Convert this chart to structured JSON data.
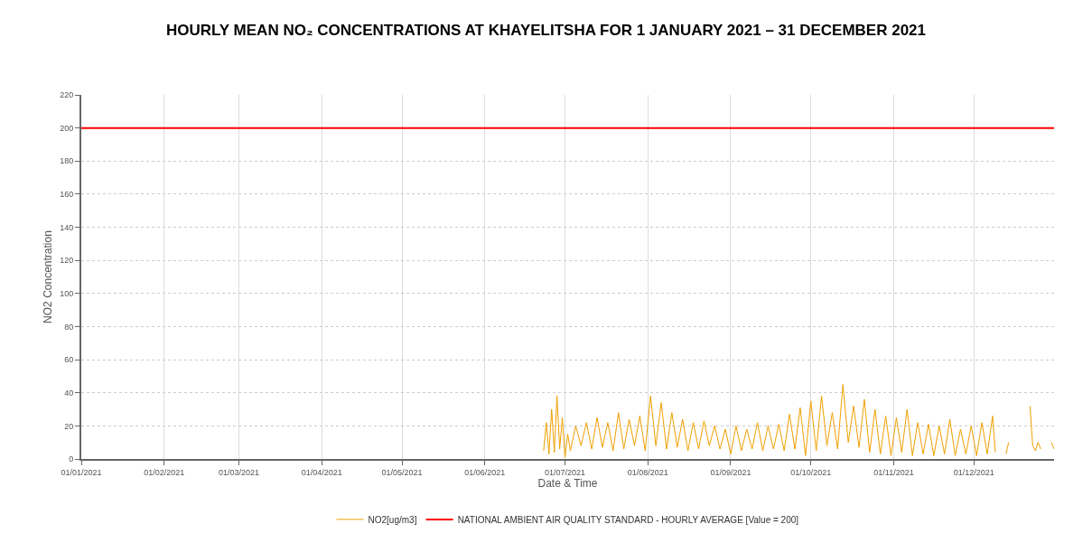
{
  "chart_data": {
    "type": "line",
    "title": "HOURLY MEAN NO₂ CONCENTRATIONS AT KHAYELITSHA FOR 1 JANUARY 2021 – 31 DECEMBER 2021",
    "xlabel": "Date & Time",
    "ylabel": "NO2 Concentration",
    "x": [
      "2021-06-23",
      "2021-06-24",
      "2021-06-25",
      "2021-06-26",
      "2021-06-27",
      "2021-06-28",
      "2021-06-29",
      "2021-06-30",
      "2021-07-01",
      "2021-07-02",
      "2021-07-03",
      "2021-07-05",
      "2021-07-07",
      "2021-07-09",
      "2021-07-11",
      "2021-07-13",
      "2021-07-15",
      "2021-07-17",
      "2021-07-19",
      "2021-07-21",
      "2021-07-23",
      "2021-07-25",
      "2021-07-27",
      "2021-07-29",
      "2021-07-31",
      "2021-08-02",
      "2021-08-04",
      "2021-08-06",
      "2021-08-08",
      "2021-08-10",
      "2021-08-12",
      "2021-08-14",
      "2021-08-16",
      "2021-08-18",
      "2021-08-20",
      "2021-08-22",
      "2021-08-24",
      "2021-08-26",
      "2021-08-28",
      "2021-08-30",
      "2021-09-01",
      "2021-09-03",
      "2021-09-05",
      "2021-09-07",
      "2021-09-09",
      "2021-09-11",
      "2021-09-13",
      "2021-09-15",
      "2021-09-17",
      "2021-09-19",
      "2021-09-21",
      "2021-09-23",
      "2021-09-25",
      "2021-09-27",
      "2021-09-29",
      "2021-10-01",
      "2021-10-03",
      "2021-10-05",
      "2021-10-07",
      "2021-10-09",
      "2021-10-11",
      "2021-10-13",
      "2021-10-15",
      "2021-10-17",
      "2021-10-19",
      "2021-10-21",
      "2021-10-23",
      "2021-10-25",
      "2021-10-27",
      "2021-10-29",
      "2021-10-31",
      "2021-11-02",
      "2021-11-04",
      "2021-11-06",
      "2021-11-08",
      "2021-11-10",
      "2021-11-12",
      "2021-11-14",
      "2021-11-16",
      "2021-11-18",
      "2021-11-20",
      "2021-11-22",
      "2021-11-24",
      "2021-11-26",
      "2021-11-28",
      "2021-11-30",
      "2021-12-02",
      "2021-12-04",
      "2021-12-06",
      "2021-12-08",
      "2021-12-09",
      "2021-12-10",
      "2021-12-13",
      "2021-12-14",
      "2021-12-15",
      "2021-12-22",
      "2021-12-23",
      "2021-12-24",
      "2021-12-25",
      "2021-12-26",
      "2021-12-27",
      "2021-12-30",
      "2021-12-31"
    ],
    "series": [
      {
        "name": "NO2[ug/m3]",
        "color": "#f0a000",
        "values": [
          5,
          22,
          3,
          30,
          4,
          38,
          6,
          25,
          1,
          15,
          5,
          20,
          8,
          22,
          6,
          25,
          7,
          22,
          5,
          28,
          6,
          24,
          8,
          26,
          5,
          38,
          8,
          34,
          6,
          28,
          7,
          24,
          5,
          22,
          6,
          23,
          8,
          20,
          6,
          18,
          3,
          20,
          5,
          18,
          6,
          22,
          5,
          20,
          6,
          21,
          5,
          27,
          6,
          31,
          2,
          35,
          5,
          38,
          8,
          28,
          6,
          45,
          10,
          32,
          7,
          36,
          4,
          30,
          3,
          26,
          2,
          25,
          4,
          30,
          2,
          22,
          3,
          21,
          2,
          20,
          3,
          24,
          2,
          18,
          3,
          20,
          2,
          22,
          3,
          26,
          4,
          null,
          3,
          10,
          null,
          32,
          8,
          5,
          10,
          6,
          null,
          10,
          6
        ]
      }
    ],
    "xlim": [
      "2021-01-01",
      "2021-12-31"
    ],
    "xticks": [
      {
        "value": "2021-01-01",
        "label": "01/01/2021"
      },
      {
        "value": "2021-02-01",
        "label": "01/02/2021"
      },
      {
        "value": "2021-03-01",
        "label": "01/03/2021"
      },
      {
        "value": "2021-04-01",
        "label": "01/04/2021"
      },
      {
        "value": "2021-05-01",
        "label": "01/05/2021"
      },
      {
        "value": "2021-06-01",
        "label": "01/06/2021"
      },
      {
        "value": "2021-07-01",
        "label": "01/07/2021"
      },
      {
        "value": "2021-08-01",
        "label": "01/08/2021"
      },
      {
        "value": "2021-09-01",
        "label": "01/09/2021"
      },
      {
        "value": "2021-10-01",
        "label": "01/10/2021"
      },
      {
        "value": "2021-11-01",
        "label": "01/11/2021"
      },
      {
        "value": "2021-12-01",
        "label": "01/12/2021"
      }
    ],
    "ylim": [
      0,
      220
    ],
    "yticks": [
      0,
      20,
      40,
      60,
      80,
      100,
      120,
      140,
      160,
      180,
      200,
      220
    ],
    "ref_lines": [
      {
        "axis": "y",
        "value": 200,
        "label": "NATIONAL AMBIENT AIR QUALITY STANDARD - HOURLY AVERAGE [Value = 200]",
        "color": "#ff0000"
      }
    ],
    "grid": true,
    "legend": "bottom",
    "marker": "none",
    "line_style": "solid"
  }
}
